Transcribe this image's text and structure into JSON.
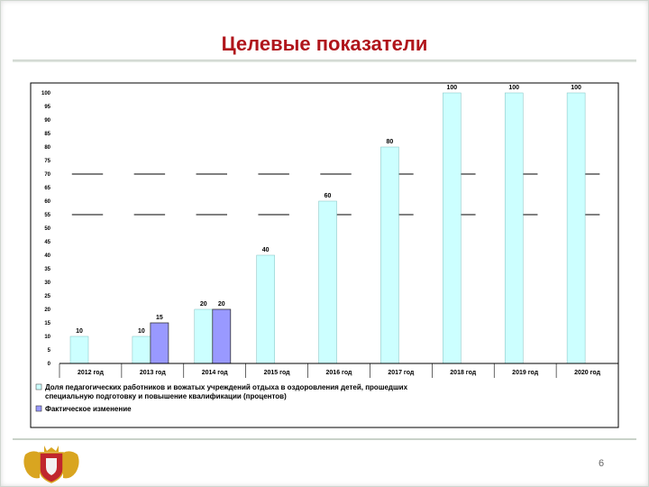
{
  "slide": {
    "title": "Целевые показатели",
    "page_number": "6"
  },
  "chart_data": {
    "type": "bar",
    "title": "Целевые показатели",
    "categories": [
      "2012 год",
      "2013 год",
      "2014 год",
      "2015 год",
      "2016 год",
      "2017 год",
      "2018 год",
      "2019 год",
      "2020 год"
    ],
    "series": [
      {
        "name": "Доля педагогических работников и вожатых учреждений отдыха в оздоровления детей, прошедших специальную подготовку и повышение квалификации (процентов)",
        "values": [
          10,
          10,
          20,
          40,
          60,
          80,
          100,
          100,
          100
        ],
        "color": "#ccffff"
      },
      {
        "name": "Фактическое изменение",
        "values": [
          null,
          15,
          20,
          null,
          null,
          null,
          null,
          null,
          null
        ],
        "color": "#9999ff"
      }
    ],
    "yticks": [
      "0",
      "5",
      "10",
      "15",
      "20",
      "25",
      "30",
      "35",
      "40",
      "45",
      "50",
      "55",
      "60",
      "65",
      "70",
      "75",
      "80",
      "85",
      "90",
      "95",
      "100"
    ],
    "ylim": [
      0,
      100
    ],
    "reference_lines": [
      55,
      70
    ],
    "legend_position": "bottom"
  }
}
